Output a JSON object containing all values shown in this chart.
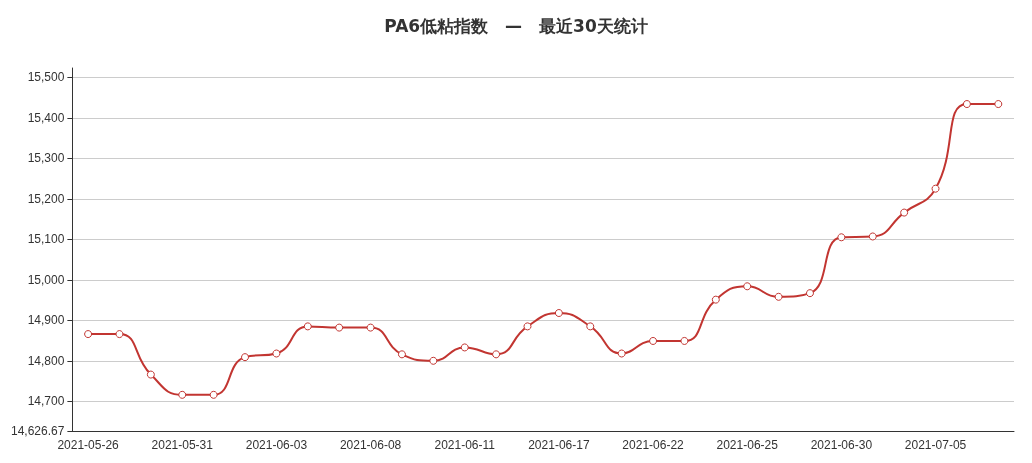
{
  "chart_data": {
    "type": "line",
    "title": "PA6低粘指数　—　最近30天统计",
    "categories": [
      "2021-05-26",
      null,
      null,
      "2021-05-31",
      null,
      null,
      "2021-06-03",
      null,
      null,
      "2021-06-08",
      null,
      null,
      "2021-06-11",
      null,
      null,
      "2021-06-17",
      null,
      null,
      "2021-06-22",
      null,
      null,
      "2021-06-25",
      null,
      null,
      "2021-06-30",
      null,
      null,
      "2021-07-05",
      null,
      null
    ],
    "series": [
      {
        "color": "#c23531",
        "values": [
          14866,
          14866,
          14766,
          14716,
          14716,
          14809,
          14818,
          14885,
          14882,
          14882,
          14816,
          14800,
          14833,
          14816,
          14885,
          14918,
          14885,
          14818,
          14849,
          14849,
          14951,
          14984,
          14958,
          14967,
          15105,
          15107,
          15166,
          15225,
          15434,
          15434
        ]
      }
    ],
    "ylim": [
      14626.67,
      15523
    ],
    "yticks": [
      {
        "value": 14626.67,
        "label": "14,626.67"
      },
      {
        "value": 14700,
        "label": "14,700"
      },
      {
        "value": 14800,
        "label": "14,800"
      },
      {
        "value": 14900,
        "label": "14,900"
      },
      {
        "value": 15000,
        "label": "15,000"
      },
      {
        "value": 15100,
        "label": "15,100"
      },
      {
        "value": 15200,
        "label": "15,200"
      },
      {
        "value": 15300,
        "label": "15,300"
      },
      {
        "value": 15400,
        "label": "15,400"
      },
      {
        "value": 15500,
        "label": "15,500"
      }
    ],
    "grid": "y",
    "marker": "circle",
    "line_style": "solid"
  }
}
